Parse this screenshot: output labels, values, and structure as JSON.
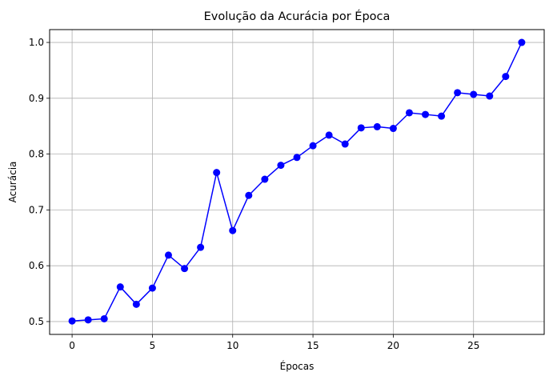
{
  "chart_data": {
    "type": "line",
    "title": "Evolução da Acurácia por Época",
    "xlabel": "Épocas",
    "ylabel": "Acurácia",
    "xlim": [
      -1.4,
      29.4
    ],
    "ylim": [
      0.477,
      1.023
    ],
    "xticks": [
      0,
      5,
      10,
      15,
      20,
      25
    ],
    "yticks": [
      0.5,
      0.6,
      0.7,
      0.8,
      0.9,
      1.0
    ],
    "xtick_labels": [
      "0",
      "5",
      "10",
      "15",
      "20",
      "25"
    ],
    "ytick_labels": [
      "0.5",
      "0.6",
      "0.7",
      "0.8",
      "0.9",
      "1.0"
    ],
    "grid": true,
    "x": [
      0,
      1,
      2,
      3,
      4,
      5,
      6,
      7,
      8,
      9,
      10,
      11,
      12,
      13,
      14,
      15,
      16,
      17,
      18,
      19,
      20,
      21,
      22,
      23,
      24,
      25,
      26,
      27,
      28
    ],
    "series": [
      {
        "color": "#0000ff",
        "marker": "circle",
        "values": [
          0.501,
          0.503,
          0.505,
          0.562,
          0.531,
          0.56,
          0.619,
          0.595,
          0.633,
          0.767,
          0.663,
          0.726,
          0.755,
          0.78,
          0.794,
          0.815,
          0.834,
          0.818,
          0.847,
          0.849,
          0.846,
          0.874,
          0.871,
          0.868,
          0.91,
          0.907,
          0.904,
          0.939,
          1.0
        ]
      }
    ]
  }
}
